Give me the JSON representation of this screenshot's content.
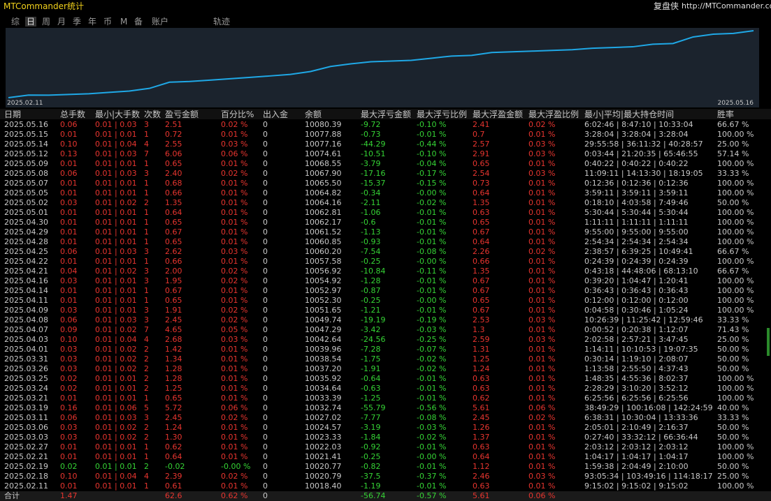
{
  "header": {
    "title": "MTCommander统计",
    "brand": "复盘侠",
    "url": "http://MTCommander.com"
  },
  "tabs": [
    "综",
    "日",
    "周",
    "月",
    "季",
    "年",
    "币",
    "M",
    "备",
    "账户",
    "轨迹"
  ],
  "chart": {
    "start_label": "2025.02.11",
    "end_label": "2025.05.16"
  },
  "table": {
    "columns": [
      "日期",
      "总手数",
      "最小|大手数",
      "次数",
      "盈亏金额",
      "百分比%",
      "出入金",
      "余额",
      "最大浮亏金额",
      "最大浮亏比例",
      "最大浮盈金额",
      "最大浮盈比例",
      "最小|平均|最大持仓时间",
      "胜率"
    ],
    "rows": [
      [
        "2025.05.16",
        "0.06",
        "0.01 | 0.03",
        "3",
        "2.51",
        "0.02 %",
        "0",
        "10080.39",
        "-9.72",
        "-0.10 %",
        "2.41",
        "0.02 %",
        "6:02:46 | 8:47:10 | 10:33:04",
        "66.67 %"
      ],
      [
        "2025.05.15",
        "0.01",
        "0.01 | 0.01",
        "1",
        "0.72",
        "0.01 %",
        "0",
        "10077.88",
        "-0.73",
        "-0.01 %",
        "0.7",
        "0.01 %",
        "3:28:04 | 3:28:04 | 3:28:04",
        "100.00 %"
      ],
      [
        "2025.05.14",
        "0.10",
        "0.01 | 0.04",
        "4",
        "2.55",
        "0.03 %",
        "0",
        "10077.16",
        "-44.29",
        "-0.44 %",
        "2.57",
        "0.03 %",
        "29:55:58 | 36:11:32 | 40:28:57",
        "25.00 %"
      ],
      [
        "2025.05.12",
        "0.13",
        "0.01 | 0.03",
        "7",
        "6.06",
        "0.06 %",
        "0",
        "10074.61",
        "-10.51",
        "-0.10 %",
        "2.91",
        "0.03 %",
        "0:03:44 | 21:20:35 | 65:46:55",
        "57.14 %"
      ],
      [
        "2025.05.09",
        "0.01",
        "0.01 | 0.01",
        "1",
        "0.65",
        "0.01 %",
        "0",
        "10068.55",
        "-3.79",
        "-0.04 %",
        "0.65",
        "0.01 %",
        "0:40:22 | 0:40:22 | 0:40:22",
        "100.00 %"
      ],
      [
        "2025.05.08",
        "0.06",
        "0.01 | 0.03",
        "3",
        "2.40",
        "0.02 %",
        "0",
        "10067.90",
        "-17.16",
        "-0.17 %",
        "2.54",
        "0.03 %",
        "11:09:11 | 14:13:30 | 18:19:05",
        "33.33 %"
      ],
      [
        "2025.05.07",
        "0.01",
        "0.01 | 0.01",
        "1",
        "0.68",
        "0.01 %",
        "0",
        "10065.50",
        "-15.37",
        "-0.15 %",
        "0.73",
        "0.01 %",
        "0:12:36 | 0:12:36 | 0:12:36",
        "100.00 %"
      ],
      [
        "2025.05.05",
        "0.01",
        "0.01 | 0.01",
        "1",
        "0.66",
        "0.01 %",
        "0",
        "10064.82",
        "-0.34",
        "-0.00 %",
        "0.64",
        "0.01 %",
        "3:59:11 | 3:59:11 | 3:59:11",
        "100.00 %"
      ],
      [
        "2025.05.02",
        "0.03",
        "0.01 | 0.02",
        "2",
        "1.35",
        "0.01 %",
        "0",
        "10064.16",
        "-2.11",
        "-0.02 %",
        "1.35",
        "0.01 %",
        "0:18:10 | 4:03:58 | 7:49:46",
        "50.00 %"
      ],
      [
        "2025.05.01",
        "0.01",
        "0.01 | 0.01",
        "1",
        "0.64",
        "0.01 %",
        "0",
        "10062.81",
        "-1.06",
        "-0.01 %",
        "0.63",
        "0.01 %",
        "5:30:44 | 5:30:44 | 5:30:44",
        "100.00 %"
      ],
      [
        "2025.04.30",
        "0.01",
        "0.01 | 0.01",
        "1",
        "0.65",
        "0.01 %",
        "0",
        "10062.17",
        "-0.6",
        "-0.01 %",
        "0.65",
        "0.01 %",
        "1:11:11 | 1:11:11 | 1:11:11",
        "100.00 %"
      ],
      [
        "2025.04.29",
        "0.01",
        "0.01 | 0.01",
        "1",
        "0.67",
        "0.01 %",
        "0",
        "10061.52",
        "-1.13",
        "-0.01 %",
        "0.67",
        "0.01 %",
        "9:55:00 | 9:55:00 | 9:55:00",
        "100.00 %"
      ],
      [
        "2025.04.28",
        "0.01",
        "0.01 | 0.01",
        "1",
        "0.65",
        "0.01 %",
        "0",
        "10060.85",
        "-0.93",
        "-0.01 %",
        "0.64",
        "0.01 %",
        "2:54:34 | 2:54:34 | 2:54:34",
        "100.00 %"
      ],
      [
        "2025.04.25",
        "0.06",
        "0.01 | 0.03",
        "3",
        "2.62",
        "0.03 %",
        "0",
        "10060.20",
        "-7.54",
        "-0.08 %",
        "2.26",
        "0.02 %",
        "2:38:57 | 6:39:25 | 10:49:41",
        "66.67 %"
      ],
      [
        "2025.04.22",
        "0.01",
        "0.01 | 0.01",
        "1",
        "0.66",
        "0.01 %",
        "0",
        "10057.58",
        "-0.25",
        "-0.00 %",
        "0.66",
        "0.01 %",
        "0:24:39 | 0:24:39 | 0:24:39",
        "100.00 %"
      ],
      [
        "2025.04.21",
        "0.04",
        "0.01 | 0.02",
        "3",
        "2.00",
        "0.02 %",
        "0",
        "10056.92",
        "-10.84",
        "-0.11 %",
        "1.35",
        "0.01 %",
        "0:43:18 | 44:48:06 | 68:13:10",
        "66.67 %"
      ],
      [
        "2025.04.16",
        "0.03",
        "0.01 | 0.01",
        "3",
        "1.95",
        "0.02 %",
        "0",
        "10054.92",
        "-1.28",
        "-0.01 %",
        "0.67",
        "0.01 %",
        "0:39:20 | 1:04:47 | 1:20:41",
        "100.00 %"
      ],
      [
        "2025.04.14",
        "0.01",
        "0.01 | 0.01",
        "1",
        "0.67",
        "0.01 %",
        "0",
        "10052.97",
        "-0.87",
        "-0.01 %",
        "0.67",
        "0.01 %",
        "0:36:43 | 0:36:43 | 0:36:43",
        "100.00 %"
      ],
      [
        "2025.04.11",
        "0.01",
        "0.01 | 0.01",
        "1",
        "0.65",
        "0.01 %",
        "0",
        "10052.30",
        "-0.25",
        "-0.00 %",
        "0.65",
        "0.01 %",
        "0:12:00 | 0:12:00 | 0:12:00",
        "100.00 %"
      ],
      [
        "2025.04.09",
        "0.03",
        "0.01 | 0.01",
        "3",
        "1.91",
        "0.02 %",
        "0",
        "10051.65",
        "-1.21",
        "-0.01 %",
        "0.67",
        "0.01 %",
        "0:04:58 | 0:30:46 | 1:05:24",
        "100.00 %"
      ],
      [
        "2025.04.08",
        "0.06",
        "0.01 | 0.03",
        "3",
        "2.45",
        "0.02 %",
        "0",
        "10049.74",
        "-19.19",
        "-0.19 %",
        "2.53",
        "0.03 %",
        "10:26:39 | 11:25:42 | 12:59:46",
        "33.33 %"
      ],
      [
        "2025.04.07",
        "0.09",
        "0.01 | 0.02",
        "7",
        "4.65",
        "0.05 %",
        "0",
        "10047.29",
        "-3.42",
        "-0.03 %",
        "1.3",
        "0.01 %",
        "0:00:52 | 0:20:38 | 1:12:07",
        "71.43 %"
      ],
      [
        "2025.04.03",
        "0.10",
        "0.01 | 0.04",
        "4",
        "2.68",
        "0.03 %",
        "0",
        "10042.64",
        "-24.56",
        "-0.25 %",
        "2.59",
        "0.03 %",
        "2:02:58 | 2:57:21 | 3:47:45",
        "25.00 %"
      ],
      [
        "2025.04.01",
        "0.03",
        "0.01 | 0.02",
        "2",
        "1.42",
        "0.01 %",
        "0",
        "10039.96",
        "-7.28",
        "-0.07 %",
        "1.31",
        "0.01 %",
        "1:14:11 | 10:10:53 | 19:07:35",
        "50.00 %"
      ],
      [
        "2025.03.31",
        "0.03",
        "0.01 | 0.02",
        "2",
        "1.34",
        "0.01 %",
        "0",
        "10038.54",
        "-1.75",
        "-0.02 %",
        "1.25",
        "0.01 %",
        "0:30:14 | 1:19:10 | 2:08:07",
        "50.00 %"
      ],
      [
        "2025.03.26",
        "0.03",
        "0.01 | 0.02",
        "2",
        "1.28",
        "0.01 %",
        "0",
        "10037.20",
        "-1.91",
        "-0.02 %",
        "1.24",
        "0.01 %",
        "1:13:58 | 2:55:50 | 4:37:43",
        "50.00 %"
      ],
      [
        "2025.03.25",
        "0.02",
        "0.01 | 0.01",
        "2",
        "1.28",
        "0.01 %",
        "0",
        "10035.92",
        "-0.64",
        "-0.01 %",
        "0.63",
        "0.01 %",
        "1:48:35 | 4:55:36 | 8:02:37",
        "100.00 %"
      ],
      [
        "2025.03.24",
        "0.02",
        "0.01 | 0.01",
        "2",
        "1.25",
        "0.01 %",
        "0",
        "10034.64",
        "-0.63",
        "-0.01 %",
        "0.63",
        "0.01 %",
        "2:28:29 | 3:10:20 | 3:52:12",
        "100.00 %"
      ],
      [
        "2025.03.21",
        "0.01",
        "0.01 | 0.01",
        "1",
        "0.65",
        "0.01 %",
        "0",
        "10033.39",
        "-1.25",
        "-0.01 %",
        "0.62",
        "0.01 %",
        "6:25:56 | 6:25:56 | 6:25:56",
        "100.00 %"
      ],
      [
        "2025.03.19",
        "0.16",
        "0.01 | 0.06",
        "5",
        "5.72",
        "0.06 %",
        "0",
        "10032.74",
        "-55.79",
        "-0.56 %",
        "5.61",
        "0.06 %",
        "38:49:29 | 100:16:08 | 142:24:59",
        "40.00 %"
      ],
      [
        "2025.03.11",
        "0.06",
        "0.01 | 0.03",
        "3",
        "2.45",
        "0.02 %",
        "0",
        "10027.02",
        "-7.77",
        "-0.08 %",
        "2.45",
        "0.02 %",
        "6:38:31 | 10:30:04 | 13:33:36",
        "33.33 %"
      ],
      [
        "2025.03.06",
        "0.03",
        "0.01 | 0.02",
        "2",
        "1.24",
        "0.01 %",
        "0",
        "10024.57",
        "-3.19",
        "-0.03 %",
        "1.26",
        "0.01 %",
        "2:05:01 | 2:10:49 | 2:16:37",
        "50.00 %"
      ],
      [
        "2025.03.03",
        "0.03",
        "0.01 | 0.02",
        "2",
        "1.30",
        "0.01 %",
        "0",
        "10023.33",
        "-1.84",
        "-0.02 %",
        "1.37",
        "0.01 %",
        "0:27:40 | 33:32:12 | 66:36:44",
        "50.00 %"
      ],
      [
        "2025.02.27",
        "0.01",
        "0.01 | 0.01",
        "1",
        "0.62",
        "0.01 %",
        "0",
        "10022.03",
        "-0.92",
        "-0.01 %",
        "0.63",
        "0.01 %",
        "2:03:12 | 2:03:12 | 2:03:12",
        "100.00 %"
      ],
      [
        "2025.02.21",
        "0.01",
        "0.01 | 0.01",
        "1",
        "0.64",
        "0.01 %",
        "0",
        "10021.41",
        "-0.25",
        "-0.00 %",
        "0.64",
        "0.01 %",
        "1:04:17 | 1:04:17 | 1:04:17",
        "100.00 %"
      ],
      [
        "2025.02.19",
        "0.02",
        "0.01 | 0.01",
        "2",
        "-0.02",
        "-0.00 %",
        "0",
        "10020.77",
        "-0.82",
        "-0.01 %",
        "1.12",
        "0.01 %",
        "1:59:38 | 2:04:49 | 2:10:00",
        "50.00 %"
      ],
      [
        "2025.02.18",
        "0.10",
        "0.01 | 0.04",
        "4",
        "2.39",
        "0.02 %",
        "0",
        "10020.79",
        "-37.5",
        "-0.37 %",
        "2.46",
        "0.03 %",
        "93:05:34 | 103:49:16 | 114:18:17",
        "25.00 %"
      ],
      [
        "2025.02.11",
        "0.01",
        "0.01 | 0.01",
        "1",
        "0.61",
        "0.01 %",
        "0",
        "10018.40",
        "-1.19",
        "-0.01 %",
        "0.63",
        "0.01 %",
        "9:15:02 | 9:15:02 | 9:15:02",
        "100.00 %"
      ]
    ],
    "total": {
      "label": "合计",
      "lots": "1.47",
      "pl": "62.6",
      "pct": "0.62 %",
      "flow": "0",
      "max_loss": "-56.74",
      "max_loss_pct": "-0.57 %",
      "max_gain": "5.61",
      "max_gain_pct": "0.06 %"
    }
  }
}
